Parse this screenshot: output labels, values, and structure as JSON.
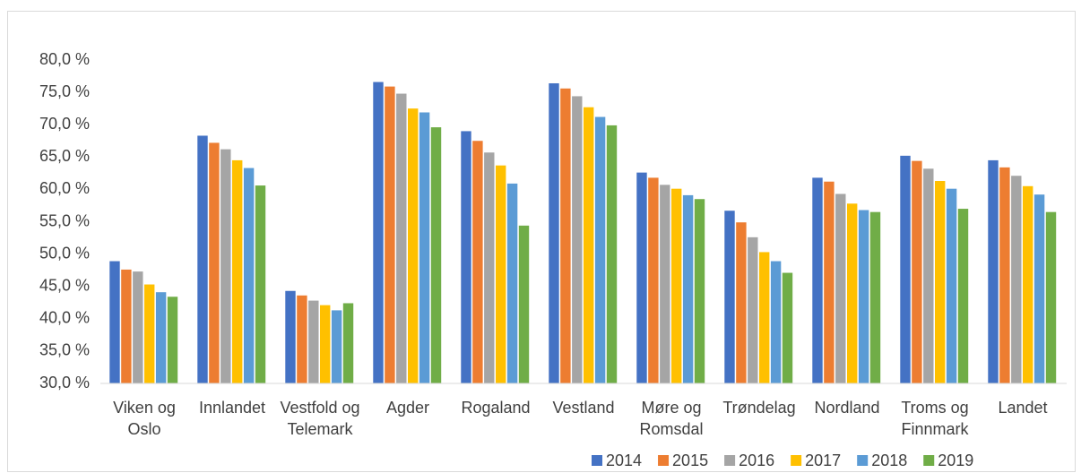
{
  "chart_data": {
    "type": "bar",
    "categories": [
      "Viken og Oslo",
      "Innlandet",
      "Vestfold og Telemark",
      "Agder",
      "Rogaland",
      "Vestland",
      "Møre og Romsdal",
      "Trøndelag",
      "Nordland",
      "Troms og Finnmark",
      "Landet"
    ],
    "series": [
      {
        "name": "2014",
        "color": "#4472c4",
        "values": [
          48.9,
          68.3,
          44.3,
          76.6,
          69.0,
          76.4,
          62.6,
          56.7,
          61.8,
          65.2,
          64.5
        ]
      },
      {
        "name": "2015",
        "color": "#ed7d31",
        "values": [
          47.6,
          67.2,
          43.6,
          75.9,
          67.5,
          75.6,
          61.8,
          54.9,
          61.2,
          64.4,
          63.4
        ]
      },
      {
        "name": "2016",
        "color": "#a5a5a5",
        "values": [
          47.3,
          66.2,
          42.8,
          74.8,
          65.7,
          74.4,
          60.7,
          52.6,
          59.3,
          63.2,
          62.1
        ]
      },
      {
        "name": "2017",
        "color": "#ffc000",
        "values": [
          45.3,
          64.5,
          42.1,
          72.5,
          63.7,
          72.7,
          60.1,
          50.3,
          57.8,
          61.3,
          60.5
        ]
      },
      {
        "name": "2018",
        "color": "#5b9bd5",
        "values": [
          44.1,
          63.3,
          41.3,
          71.9,
          60.9,
          71.2,
          59.1,
          48.9,
          56.8,
          60.1,
          59.2
        ]
      },
      {
        "name": "2019",
        "color": "#70ad47",
        "values": [
          43.4,
          60.6,
          42.4,
          69.6,
          54.4,
          69.9,
          58.5,
          47.1,
          56.5,
          57.0,
          56.5
        ]
      }
    ],
    "ylim": [
      30,
      80
    ],
    "yticks": [
      {
        "value": 30,
        "label": "30,0 %"
      },
      {
        "value": 35,
        "label": "35,0 %"
      },
      {
        "value": 40,
        "label": "40,0 %"
      },
      {
        "value": 45,
        "label": "45,0 %"
      },
      {
        "value": 50,
        "label": "50,0 %"
      },
      {
        "value": 55,
        "label": "55,0 %"
      },
      {
        "value": 60,
        "label": "60,0 %"
      },
      {
        "value": 65,
        "label": "65,0 %"
      },
      {
        "value": 70,
        "label": "70,0 %"
      },
      {
        "value": 75,
        "label": "75,0 %"
      },
      {
        "value": 80,
        "label": "80,0 %"
      }
    ],
    "grid": false,
    "legend": "bottom-right"
  }
}
